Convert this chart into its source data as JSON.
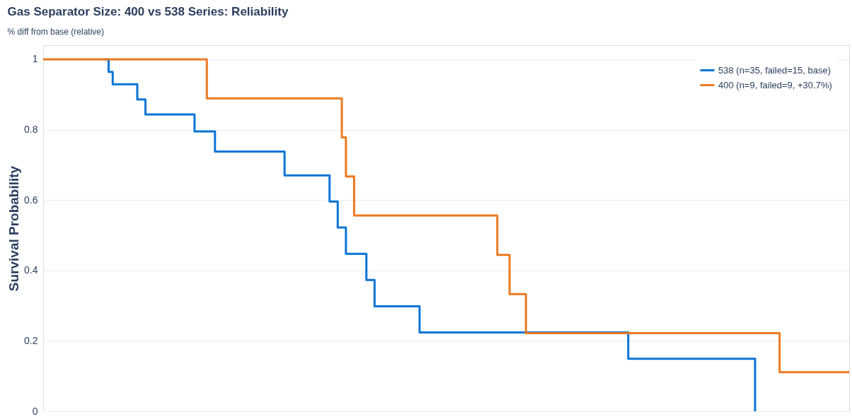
{
  "chart_data": {
    "type": "step",
    "title": "Gas Separator Size: 400 vs 538 Series: Reliability",
    "subtitle": "% diff from base (relative)",
    "ylabel": "Survival Probability",
    "categories": [
      null,
      null,
      null,
      null,
      null,
      null,
      null,
      null,
      null,
      null,
      null,
      null,
      null,
      null,
      null,
      null,
      null,
      null,
      null,
      null,
      null,
      null,
      null,
      null,
      null,
      null,
      null,
      null,
      null,
      null,
      null,
      null,
      null,
      null,
      null,
      null,
      null,
      null,
      null,
      null,
      null,
      null,
      null,
      null,
      null,
      null,
      null,
      null,
      null,
      null,
      null,
      null,
      null,
      null,
      null,
      null,
      null,
      null,
      null,
      null,
      null,
      null,
      null,
      null,
      null,
      null,
      null,
      null,
      null,
      null,
      null,
      null,
      null,
      null,
      null,
      null,
      null,
      null,
      null,
      null,
      null,
      null,
      null,
      null,
      null,
      null,
      null,
      null,
      null,
      null,
      null,
      null,
      null,
      null,
      null,
      null,
      null,
      null,
      null,
      null,
      null,
      null,
      null,
      null,
      null,
      null,
      null,
      null,
      null,
      null,
      null,
      null,
      null,
      null,
      null,
      null,
      null,
      null,
      null,
      null,
      null,
      null,
      null,
      null,
      null,
      null,
      null,
      null,
      null,
      null,
      null,
      null,
      null,
      null,
      null,
      null,
      null,
      null,
      null,
      null,
      null,
      null,
      null,
      null,
      null,
      null,
      null,
      null,
      null,
      null,
      null,
      null,
      null,
      null,
      null,
      null,
      null,
      null,
      null,
      null,
      null,
      null,
      null,
      null,
      null,
      null,
      null,
      null,
      null,
      null,
      null,
      null,
      null,
      null,
      null,
      null,
      null,
      null,
      null,
      null,
      null,
      null,
      null,
      null,
      null,
      null,
      null,
      null,
      null,
      null,
      null,
      null,
      null,
      null,
      null,
      null,
      null,
      null
    ],
    "series": [
      {
        "name": "538 (n=35, failed=15, base)",
        "color": "#0a74d6",
        "values": [
          null,
          null,
          null,
          null,
          null,
          null,
          null,
          null,
          null,
          null,
          null,
          null,
          null,
          null,
          null,
          1,
          0.964,
          0.929,
          0.929,
          0.929,
          0.929,
          0.929,
          0.929,
          0.886,
          0.886,
          0.843,
          0.843,
          0.843,
          0.843,
          0.843,
          0.843,
          0.843,
          0.843,
          0.843,
          0.843,
          0.843,
          0.843,
          0.795,
          0.795,
          0.795,
          0.795,
          0.795,
          0.738,
          0.738,
          0.738,
          0.738,
          0.738,
          0.738,
          0.738,
          0.738,
          0.738,
          0.738,
          0.738,
          0.738,
          0.738,
          0.738,
          0.738,
          0.738,
          0.738,
          0.67,
          0.67,
          0.67,
          0.67,
          0.67,
          0.67,
          0.67,
          0.67,
          0.67,
          0.67,
          0.67,
          0.596,
          0.596,
          0.522,
          0.522,
          0.447,
          0.447,
          0.447,
          0.447,
          0.447,
          0.373,
          0.373,
          0.298,
          0.298,
          0.298,
          0.298,
          0.298,
          0.298,
          0.298,
          0.298,
          0.298,
          0.298,
          0.298,
          0.224,
          0.224,
          0.224,
          0.224,
          0.224,
          0.224,
          0.224,
          0.224,
          0.224,
          0.224,
          0.224,
          0.224,
          0.224,
          0.224,
          0.224,
          0.224,
          0.224,
          0.224,
          0.224,
          0.224,
          0.224,
          0.224,
          0.224,
          0.224,
          0.224,
          0.224,
          0.224,
          0.224,
          0.224,
          0.224,
          0.224,
          0.224,
          0.224,
          0.224,
          0.224,
          0.224,
          0.224,
          0.224,
          0.224,
          0.224,
          0.224,
          0.224,
          0.224,
          0.224,
          0.224,
          0.224,
          0.224,
          0.224,
          0.224,
          0.224,
          0.224,
          0.149,
          0.149,
          0.149,
          0.149,
          0.149,
          0.149,
          0.149,
          0.149,
          0.149,
          0.149,
          0.149,
          0.149,
          0.149,
          0.149,
          0.149,
          0.149,
          0.149,
          0.149,
          0.149,
          0.149,
          0.149,
          0.149,
          0.149,
          0.149,
          0.149,
          0.149,
          0.149,
          0.149,
          0.149,
          0.149,
          0.149,
          0,
          null,
          null,
          null,
          null,
          null,
          null,
          null,
          null,
          null,
          null,
          null,
          null,
          null,
          null,
          null,
          null,
          null,
          null,
          null,
          null,
          null,
          null,
          null
        ]
      },
      {
        "name": "400 (n=9, failed=9, +30.7%)",
        "color": "#ec7a22",
        "values": [
          1,
          1,
          1,
          1,
          1,
          1,
          1,
          1,
          1,
          1,
          1,
          1,
          1,
          1,
          1,
          1,
          1,
          1,
          1,
          1,
          1,
          1,
          1,
          1,
          1,
          1,
          1,
          1,
          1,
          1,
          1,
          1,
          1,
          1,
          1,
          1,
          1,
          1,
          1,
          1,
          0.889,
          0.889,
          0.889,
          0.889,
          0.889,
          0.889,
          0.889,
          0.889,
          0.889,
          0.889,
          0.889,
          0.889,
          0.889,
          0.889,
          0.889,
          0.889,
          0.889,
          0.889,
          0.889,
          0.889,
          0.889,
          0.889,
          0.889,
          0.889,
          0.889,
          0.889,
          0.889,
          0.889,
          0.889,
          0.889,
          0.889,
          0.889,
          0.889,
          0.778,
          0.667,
          0.667,
          0.556,
          0.556,
          0.556,
          0.556,
          0.556,
          0.556,
          0.556,
          0.556,
          0.556,
          0.556,
          0.556,
          0.556,
          0.556,
          0.556,
          0.556,
          0.556,
          0.556,
          0.556,
          0.556,
          0.556,
          0.556,
          0.556,
          0.556,
          0.556,
          0.556,
          0.556,
          0.556,
          0.556,
          0.556,
          0.556,
          0.556,
          0.556,
          0.556,
          0.556,
          0.556,
          0.444,
          0.444,
          0.444,
          0.333,
          0.333,
          0.333,
          0.333,
          0.222,
          0.222,
          0.222,
          0.222,
          0.222,
          0.222,
          0.222,
          0.222,
          0.222,
          0.222,
          0.222,
          0.222,
          0.222,
          0.222,
          0.222,
          0.222,
          0.222,
          0.222,
          0.222,
          0.222,
          0.222,
          0.222,
          0.222,
          0.222,
          0.222,
          0.222,
          0.222,
          0.222,
          0.222,
          0.222,
          0.222,
          0.222,
          0.222,
          0.222,
          0.222,
          0.222,
          0.222,
          0.222,
          0.222,
          0.222,
          0.222,
          0.222,
          0.222,
          0.222,
          0.222,
          0.222,
          0.222,
          0.222,
          0.222,
          0.222,
          0.222,
          0.222,
          0.222,
          0.222,
          0.222,
          0.222,
          0.222,
          0.222,
          0.222,
          0.222,
          0.222,
          0.222,
          0.111,
          0.111,
          0.111,
          0.111,
          0.111,
          0.111,
          0.111,
          0.111,
          0.111,
          0.111,
          0.111,
          0.111,
          0.111,
          0.111,
          0.111,
          0.111,
          0.111,
          0.111
        ]
      }
    ],
    "ylim": [
      0,
      1.04
    ],
    "yticks": [
      0,
      0.2,
      0.4,
      0.6,
      0.8,
      1
    ],
    "grid": "y",
    "legend": "top right",
    "tick_labels": "y"
  }
}
